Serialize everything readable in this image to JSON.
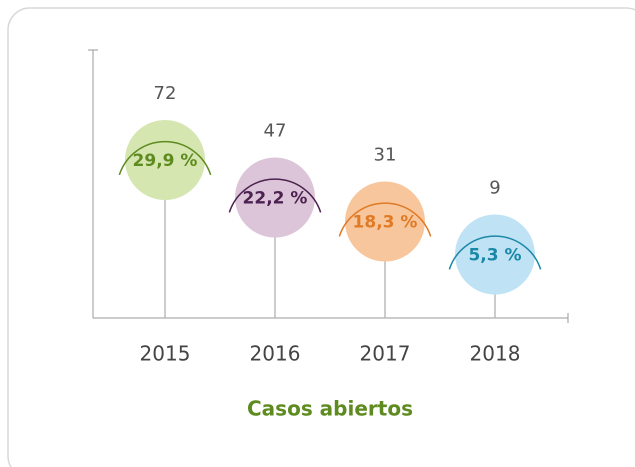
{
  "chart_data": {
    "type": "lollipop",
    "title": "Casos abiertos",
    "categories": [
      "2015",
      "2016",
      "2017",
      "2018"
    ],
    "values": [
      72,
      47,
      31,
      9
    ],
    "shares": [
      29.9,
      22.2,
      18.3,
      5.3
    ],
    "share_labels": [
      "29,9 %",
      "22,2 %",
      "18,3 %",
      "5,3 %"
    ],
    "colors": [
      "#5e8b1f",
      "#4c2250",
      "#df7a26",
      "#1a88a6"
    ],
    "fill_colors": [
      "#d6e6b0",
      "#dcc5d9",
      "#f8c69c",
      "#bfe3f4"
    ]
  }
}
